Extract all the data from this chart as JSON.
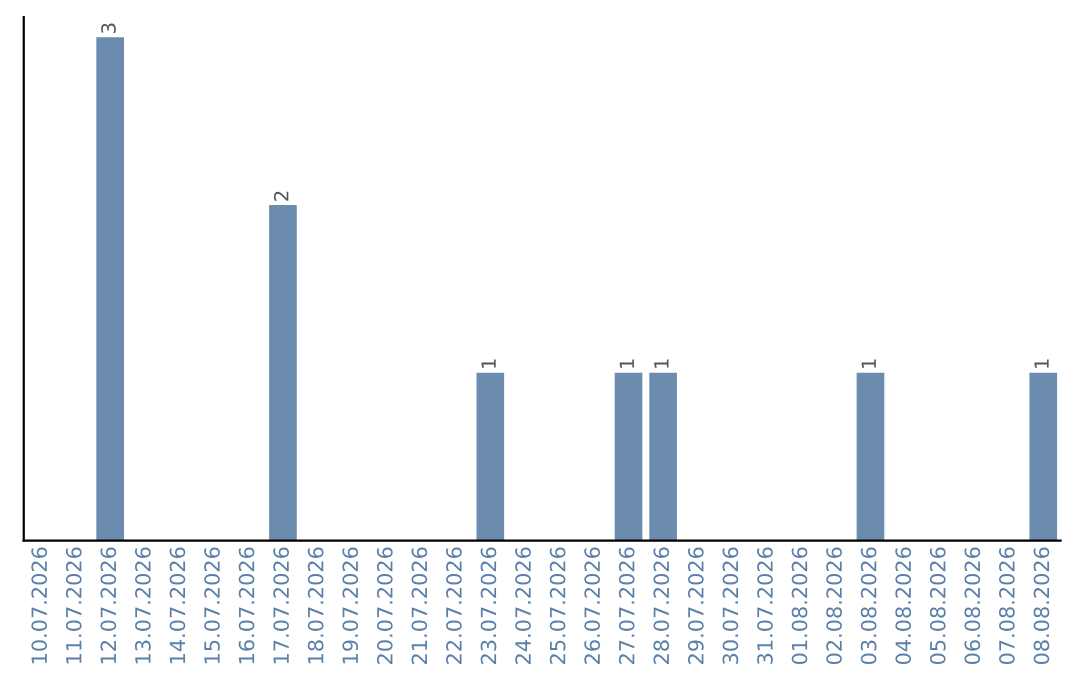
{
  "chart_data": {
    "type": "bar",
    "categories": [
      "10.07.2026",
      "11.07.2026",
      "12.07.2026",
      "13.07.2026",
      "14.07.2026",
      "15.07.2026",
      "16.07.2026",
      "17.07.2026",
      "18.07.2026",
      "19.07.2026",
      "20.07.2026",
      "21.07.2026",
      "22.07.2026",
      "23.07.2026",
      "24.07.2026",
      "25.07.2026",
      "26.07.2026",
      "27.07.2026",
      "28.07.2026",
      "29.07.2026",
      "30.07.2026",
      "31.07.2026",
      "01.08.2026",
      "02.08.2026",
      "03.08.2026",
      "04.08.2026",
      "05.08.2026",
      "06.08.2026",
      "07.08.2026",
      "08.08.2026"
    ],
    "values": [
      0,
      0,
      3,
      0,
      0,
      0,
      0,
      2,
      0,
      0,
      0,
      0,
      0,
      1,
      0,
      0,
      0,
      1,
      1,
      0,
      0,
      0,
      0,
      0,
      1,
      0,
      0,
      0,
      0,
      1
    ],
    "value_labels": [
      null,
      null,
      "3",
      null,
      null,
      null,
      null,
      "2",
      null,
      null,
      null,
      null,
      null,
      "1",
      null,
      null,
      null,
      "1",
      "1",
      null,
      null,
      null,
      null,
      null,
      "1",
      null,
      null,
      null,
      null,
      "1"
    ],
    "color": "#6b8cae",
    "tick_labels": "x",
    "grid": false
  }
}
